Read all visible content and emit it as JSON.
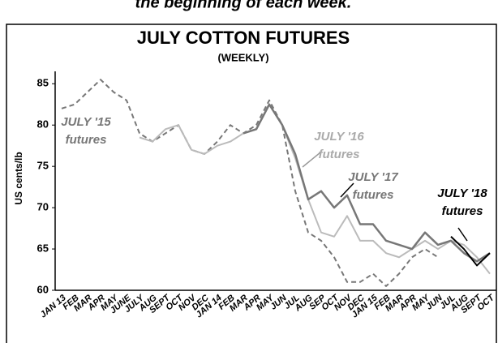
{
  "caption": "the beginning of each week.",
  "chart_data": {
    "type": "line",
    "title": "JULY COTTON FUTURES",
    "subtitle": "(WEEKLY)",
    "y_label": "US cents/lb",
    "categories": [
      "JAN 13",
      "FEB",
      "MAR",
      "APR",
      "MAY",
      "JUNE",
      "JULY",
      "AUG",
      "SEPT",
      "OCT",
      "NOV",
      "DEC",
      "JAN 14",
      "FEB",
      "MAR",
      "APR",
      "MAY",
      "JUN",
      "JUL",
      "AUG",
      "SEP",
      "OCT",
      "NOV",
      "DEC",
      "JAN 15",
      "FEB",
      "MAR",
      "APR",
      "MAY",
      "JUN",
      "JUL",
      "AUG",
      "SEPT",
      "OCT"
    ],
    "series": [
      {
        "name": "JULY '15 futures",
        "color": "#777777",
        "dashed": true,
        "values": [
          82,
          82.5,
          84,
          85.5,
          84,
          83,
          79,
          78,
          79,
          80,
          77,
          76.5,
          78,
          80,
          79,
          80,
          83,
          80,
          72,
          67,
          66,
          64,
          61,
          61,
          62,
          60.5,
          62,
          64,
          65,
          64,
          null,
          null,
          null,
          null
        ]
      },
      {
        "name": "JULY '16 futures",
        "color": "#bbbbbb",
        "dashed": false,
        "values": [
          null,
          null,
          null,
          null,
          null,
          null,
          78.5,
          78,
          79.5,
          80,
          77,
          76.5,
          77.5,
          78,
          79,
          79.5,
          82.5,
          80,
          76,
          71,
          67,
          66.5,
          69,
          66,
          66,
          64.5,
          64,
          65,
          66,
          65,
          66,
          65.5,
          64,
          62
        ]
      },
      {
        "name": "JULY '17 futures",
        "color": "#777777",
        "dashed": false,
        "values": [
          null,
          null,
          null,
          null,
          null,
          null,
          null,
          null,
          null,
          null,
          null,
          null,
          null,
          null,
          79,
          79.5,
          82.5,
          80,
          76.5,
          71,
          72,
          70,
          71.5,
          68,
          68,
          66,
          65.5,
          65,
          67,
          65.5,
          66,
          64.5,
          63.5,
          64.5
        ]
      },
      {
        "name": "JULY '18 futures",
        "color": "#000000",
        "dashed": false,
        "values": [
          null,
          null,
          null,
          null,
          null,
          null,
          null,
          null,
          null,
          null,
          null,
          null,
          null,
          null,
          null,
          null,
          null,
          null,
          null,
          null,
          null,
          null,
          null,
          null,
          null,
          null,
          null,
          null,
          null,
          null,
          66.5,
          65,
          63,
          64.5
        ]
      }
    ],
    "ylim": [
      60,
      86.5
    ],
    "yticks": [
      60,
      65,
      70,
      75,
      80,
      85
    ],
    "grid": false
  }
}
